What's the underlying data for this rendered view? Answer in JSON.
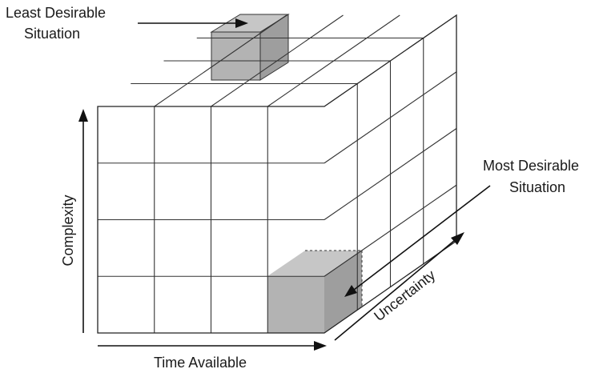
{
  "labels": {
    "least_desirable_line1": "Least Desirable",
    "least_desirable_line2": "Situation",
    "most_desirable_line1": "Most Desirable",
    "most_desirable_line2": "Situation",
    "axis_complexity": "Complexity",
    "axis_time": "Time Available",
    "axis_uncertainty": "Uncertainty"
  },
  "cube": {
    "divisions": 4
  },
  "colors": {
    "highlight_front": "#b3b3b3",
    "highlight_top": "#c6c6c6",
    "highlight_side": "#9e9e9e",
    "line": "#333333"
  }
}
